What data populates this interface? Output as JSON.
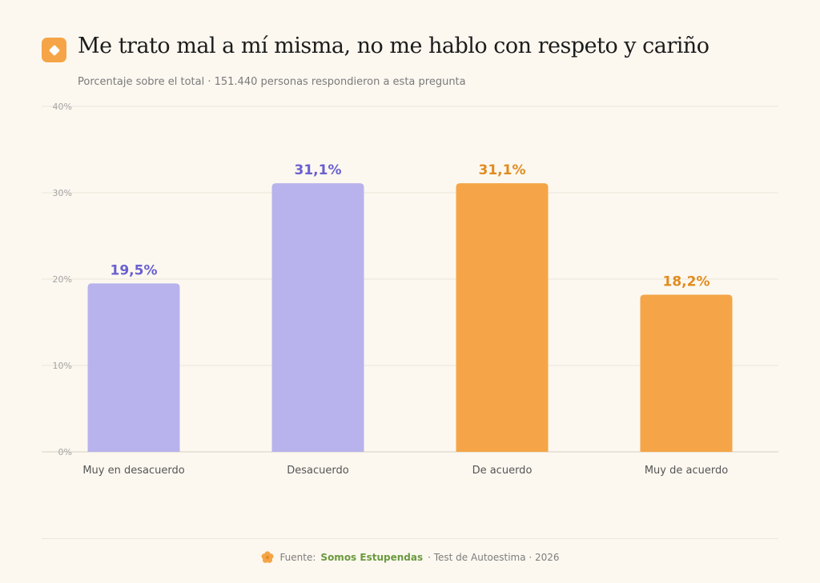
{
  "header": {
    "title": "Me trato mal a mí misma, no me hablo con respeto y cariño",
    "subtitle": "Porcentaje sobre el total · 151.440 personas respondieron a esta pregunta",
    "icon": "diamond-icon"
  },
  "chart_data": {
    "type": "bar",
    "categories": [
      "Muy en desacuerdo",
      "Desacuerdo",
      "De acuerdo",
      "Muy de acuerdo"
    ],
    "values": [
      19.5,
      31.1,
      31.1,
      18.2
    ],
    "value_labels": [
      "19,5%",
      "31,1%",
      "31,1%",
      "18,2%"
    ],
    "bar_colors": [
      "#b8b3ec",
      "#b8b3ec",
      "#f5a547",
      "#f5a547"
    ],
    "label_colors": [
      "#6a5fd0",
      "#6a5fd0",
      "#e08c1f",
      "#e08c1f"
    ],
    "ylim": [
      0,
      40
    ],
    "yticks": [
      0,
      10,
      20,
      30,
      40
    ],
    "ytick_labels": [
      "0%",
      "10%",
      "20%",
      "30%",
      "40%"
    ],
    "grid": true
  },
  "footer": {
    "prefix": "Fuente:",
    "brand": "Somos Estupendas",
    "suffix": "· Test de Autoestima · 2026",
    "icon": "flower-icon",
    "brand_color": "#6b9a3e"
  }
}
